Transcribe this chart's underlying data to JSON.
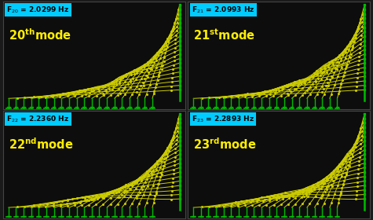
{
  "modes": [
    {
      "num": 20,
      "suffix": "th",
      "freq": "2.0299",
      "row": 0,
      "col": 0
    },
    {
      "num": 21,
      "suffix": "st",
      "freq": "2.0993",
      "row": 0,
      "col": 1
    },
    {
      "num": 22,
      "suffix": "nd",
      "freq": "2.2360",
      "row": 1,
      "col": 0
    },
    {
      "num": 23,
      "suffix": "rd",
      "freq": "2.2893",
      "row": 1,
      "col": 1
    }
  ],
  "bg_color": "#1a1a1a",
  "panel_bg": "#0d0d0d",
  "cable_color": "#cccc00",
  "anchor_color": "#00bb00",
  "freq_box_color": "#00ccff",
  "label_color": "#ffee00",
  "border_color": "#444444",
  "n_cables": 20
}
